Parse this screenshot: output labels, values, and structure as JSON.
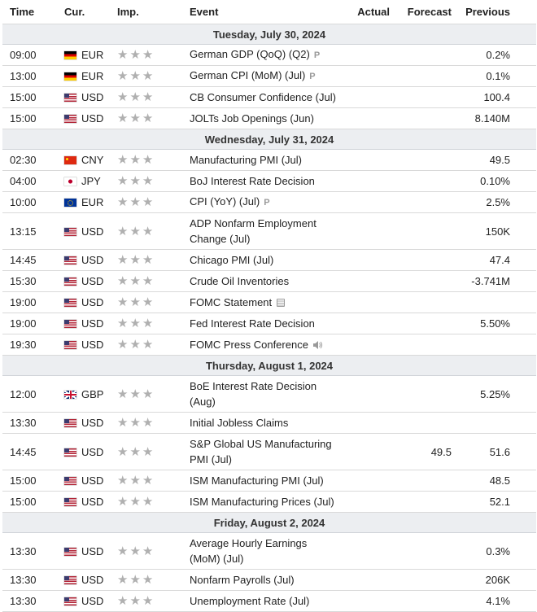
{
  "headers": {
    "time": "Time",
    "currency": "Cur.",
    "importance": "Imp.",
    "event": "Event",
    "actual": "Actual",
    "forecast": "Forecast",
    "previous": "Previous"
  },
  "colors": {
    "day_row_bg": "#eceef1",
    "star": "#b0b0b0",
    "border": "#d9d9d9"
  },
  "days": [
    {
      "label": "Tuesday, July 30, 2024",
      "events": [
        {
          "time": "09:00",
          "flag": "de",
          "currency": "EUR",
          "event": "German GDP (QoQ) (Q2)",
          "badge": "preliminary",
          "badge_text": "P",
          "actual": "",
          "forecast": "",
          "previous": "0.2%"
        },
        {
          "time": "13:00",
          "flag": "de",
          "currency": "EUR",
          "event": "German CPI (MoM) (Jul)",
          "badge": "preliminary",
          "badge_text": "P",
          "actual": "",
          "forecast": "",
          "previous": "0.1%"
        },
        {
          "time": "15:00",
          "flag": "us",
          "currency": "USD",
          "event": "CB Consumer Confidence (Jul)",
          "actual": "",
          "forecast": "",
          "previous": "100.4"
        },
        {
          "time": "15:00",
          "flag": "us",
          "currency": "USD",
          "event": "JOLTs Job Openings (Jun)",
          "actual": "",
          "forecast": "",
          "previous": "8.140M"
        }
      ]
    },
    {
      "label": "Wednesday, July 31, 2024",
      "events": [
        {
          "time": "02:30",
          "flag": "cn",
          "currency": "CNY",
          "event": "Manufacturing PMI (Jul)",
          "actual": "",
          "forecast": "",
          "previous": "49.5"
        },
        {
          "time": "04:00",
          "flag": "jp",
          "currency": "JPY",
          "event": "BoJ Interest Rate Decision",
          "actual": "",
          "forecast": "",
          "previous": "0.10%"
        },
        {
          "time": "10:00",
          "flag": "eu",
          "currency": "EUR",
          "event": "CPI (YoY) (Jul)",
          "badge": "preliminary",
          "badge_text": "P",
          "actual": "",
          "forecast": "",
          "previous": "2.5%"
        },
        {
          "time": "13:15",
          "flag": "us",
          "currency": "USD",
          "event": "ADP Nonfarm Employment Change (Jul)",
          "tall": true,
          "actual": "",
          "forecast": "",
          "previous": "150K"
        },
        {
          "time": "14:45",
          "flag": "us",
          "currency": "USD",
          "event": "Chicago PMI (Jul)",
          "actual": "",
          "forecast": "",
          "previous": "47.4"
        },
        {
          "time": "15:30",
          "flag": "us",
          "currency": "USD",
          "event": "Crude Oil Inventories",
          "actual": "",
          "forecast": "",
          "previous": "-3.741M"
        },
        {
          "time": "19:00",
          "flag": "us",
          "currency": "USD",
          "event": "FOMC Statement",
          "badge": "document",
          "actual": "",
          "forecast": "",
          "previous": ""
        },
        {
          "time": "19:00",
          "flag": "us",
          "currency": "USD",
          "event": "Fed Interest Rate Decision",
          "actual": "",
          "forecast": "",
          "previous": "5.50%"
        },
        {
          "time": "19:30",
          "flag": "us",
          "currency": "USD",
          "event": "FOMC Press Conference",
          "badge": "speaker",
          "actual": "",
          "forecast": "",
          "previous": ""
        }
      ]
    },
    {
      "label": "Thursday, August 1, 2024",
      "events": [
        {
          "time": "12:00",
          "flag": "gb",
          "currency": "GBP",
          "event": "BoE Interest Rate Decision (Aug)",
          "tall": true,
          "actual": "",
          "forecast": "",
          "previous": "5.25%"
        },
        {
          "time": "13:30",
          "flag": "us",
          "currency": "USD",
          "event": "Initial Jobless Claims",
          "actual": "",
          "forecast": "",
          "previous": ""
        },
        {
          "time": "14:45",
          "flag": "us",
          "currency": "USD",
          "event": "S&P Global US Manufacturing PMI (Jul)",
          "tall": true,
          "actual": "",
          "forecast": "49.5",
          "previous": "51.6"
        },
        {
          "time": "15:00",
          "flag": "us",
          "currency": "USD",
          "event": "ISM Manufacturing PMI (Jul)",
          "actual": "",
          "forecast": "",
          "previous": "48.5"
        },
        {
          "time": "15:00",
          "flag": "us",
          "currency": "USD",
          "event": "ISM Manufacturing Prices (Jul)",
          "actual": "",
          "forecast": "",
          "previous": "52.1"
        }
      ]
    },
    {
      "label": "Friday, August 2, 2024",
      "events": [
        {
          "time": "13:30",
          "flag": "us",
          "currency": "USD",
          "event": "Average Hourly Earnings (MoM) (Jul)",
          "tall": true,
          "actual": "",
          "forecast": "",
          "previous": "0.3%"
        },
        {
          "time": "13:30",
          "flag": "us",
          "currency": "USD",
          "event": "Nonfarm Payrolls (Jul)",
          "actual": "",
          "forecast": "",
          "previous": "206K"
        },
        {
          "time": "13:30",
          "flag": "us",
          "currency": "USD",
          "event": "Unemployment Rate (Jul)",
          "actual": "",
          "forecast": "",
          "previous": "4.1%"
        }
      ]
    }
  ]
}
